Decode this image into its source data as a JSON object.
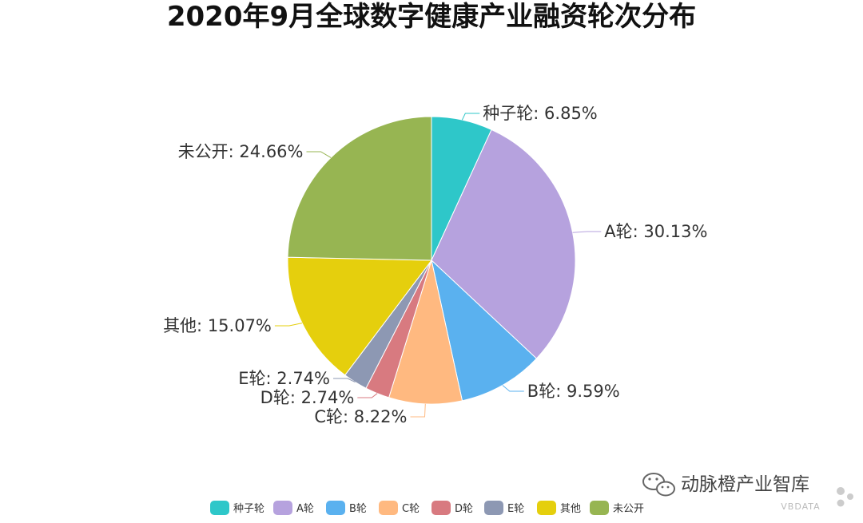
{
  "chart_data": {
    "type": "pie",
    "title": "2020年9月全球数字健康产业融资轮次分布",
    "categories": [
      "种子轮",
      "A轮",
      "B轮",
      "C轮",
      "D轮",
      "E轮",
      "其他",
      "未公开"
    ],
    "values": [
      6.85,
      30.13,
      9.59,
      8.22,
      2.74,
      2.74,
      15.07,
      24.66
    ],
    "unit": "%",
    "labels": [
      "种子轮: 6.85%",
      "A轮: 30.13%",
      "B轮: 9.59%",
      "C轮: 8.22%",
      "D轮: 2.74%",
      "E轮: 2.74%",
      "其他: 15.07%",
      "未公开: 24.66%"
    ],
    "colors": [
      "#2ec7c9",
      "#b6a2de",
      "#5ab1ef",
      "#ffb980",
      "#d87a80",
      "#8d98b3",
      "#e5cf0d",
      "#97b552"
    ],
    "legend": {
      "position": "bottom",
      "items": [
        "种子轮",
        "A轮",
        "B轮",
        "C轮",
        "D轮",
        "E轮",
        "其他",
        "未公开"
      ]
    }
  },
  "watermark": {
    "text": "动脉橙产业智库",
    "sub": "VBDATA",
    "icon": "wechat-icon"
  }
}
